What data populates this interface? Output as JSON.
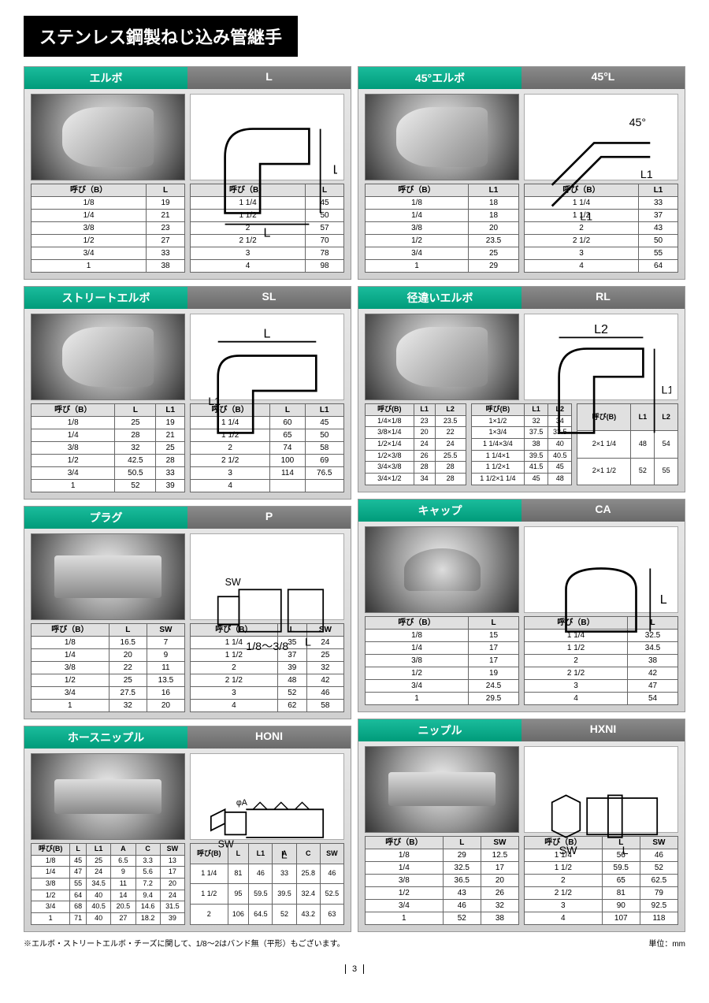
{
  "title": "ステンレス鋼製ねじ込み管継手",
  "footnote": "※エルボ・ストリートエルボ・チーズに関して、1/8〜2はバンド無（平形）もございます。",
  "unit": "単位：mm",
  "page": "3",
  "cards": {
    "L": {
      "name": "エルボ",
      "code": "L",
      "tA": {
        "h": [
          "呼び（B）",
          "L"
        ],
        "r": [
          [
            "1/8",
            "19"
          ],
          [
            "1/4",
            "21"
          ],
          [
            "3/8",
            "23"
          ],
          [
            "1/2",
            "27"
          ],
          [
            "3/4",
            "33"
          ],
          [
            "1",
            "38"
          ]
        ]
      },
      "tB": {
        "h": [
          "呼び（B）",
          "L"
        ],
        "r": [
          [
            "1 1/4",
            "45"
          ],
          [
            "1 1/2",
            "50"
          ],
          [
            "2",
            "57"
          ],
          [
            "2 1/2",
            "70"
          ],
          [
            "3",
            "78"
          ],
          [
            "4",
            "98"
          ]
        ]
      }
    },
    "45L": {
      "name": "45°エルボ",
      "code": "45°L",
      "tA": {
        "h": [
          "呼び（B）",
          "L1"
        ],
        "r": [
          [
            "1/8",
            "18"
          ],
          [
            "1/4",
            "18"
          ],
          [
            "3/8",
            "20"
          ],
          [
            "1/2",
            "23.5"
          ],
          [
            "3/4",
            "25"
          ],
          [
            "1",
            "29"
          ]
        ]
      },
      "tB": {
        "h": [
          "呼び（B）",
          "L1"
        ],
        "r": [
          [
            "1 1/4",
            "33"
          ],
          [
            "1 1/2",
            "37"
          ],
          [
            "2",
            "43"
          ],
          [
            "2 1/2",
            "50"
          ],
          [
            "3",
            "55"
          ],
          [
            "4",
            "64"
          ]
        ]
      }
    },
    "SL": {
      "name": "ストリートエルボ",
      "code": "SL",
      "tA": {
        "h": [
          "呼び（B）",
          "L",
          "L1"
        ],
        "r": [
          [
            "1/8",
            "25",
            "19"
          ],
          [
            "1/4",
            "28",
            "21"
          ],
          [
            "3/8",
            "32",
            "25"
          ],
          [
            "1/2",
            "42.5",
            "28"
          ],
          [
            "3/4",
            "50.5",
            "33"
          ],
          [
            "1",
            "52",
            "39"
          ]
        ]
      },
      "tB": {
        "h": [
          "呼び（B）",
          "L",
          "L1"
        ],
        "r": [
          [
            "1 1/4",
            "60",
            "45"
          ],
          [
            "1 1/2",
            "65",
            "50"
          ],
          [
            "2",
            "74",
            "58"
          ],
          [
            "2 1/2",
            "100",
            "69"
          ],
          [
            "3",
            "114",
            "76.5"
          ],
          [
            "4",
            "",
            ""
          ]
        ]
      }
    },
    "RL": {
      "name": "径違いエルボ",
      "code": "RL",
      "tA": {
        "h": [
          "呼び(B)",
          "L1",
          "L2"
        ],
        "r": [
          [
            "1/4×1/8",
            "23",
            "23.5"
          ],
          [
            "3/8×1/4",
            "20",
            "22"
          ],
          [
            "1/2×1/4",
            "24",
            "24"
          ],
          [
            "1/2×3/8",
            "26",
            "25.5"
          ],
          [
            "3/4×3/8",
            "28",
            "28"
          ],
          [
            "3/4×1/2",
            "34",
            "28"
          ]
        ]
      },
      "tB": {
        "h": [
          "呼び(B)",
          "L1",
          "L2"
        ],
        "r": [
          [
            "1×1/2",
            "32",
            "34"
          ],
          [
            "1×3/4",
            "37.5",
            "33.5"
          ],
          [
            "1 1/4×3/4",
            "38",
            "40"
          ],
          [
            "1 1/4×1",
            "39.5",
            "40.5"
          ],
          [
            "1 1/2×1",
            "41.5",
            "45"
          ],
          [
            "1 1/2×1 1/4",
            "45",
            "48"
          ]
        ]
      },
      "tC": {
        "h": [
          "呼び(B)",
          "L1",
          "L2"
        ],
        "r": [
          [
            "2×1 1/4",
            "48",
            "54"
          ],
          [
            "2×1 1/2",
            "52",
            "55"
          ]
        ]
      }
    },
    "P": {
      "name": "プラグ",
      "code": "P",
      "tA": {
        "h": [
          "呼び（B）",
          "L",
          "SW"
        ],
        "r": [
          [
            "1/8",
            "16.5",
            "7"
          ],
          [
            "1/4",
            "20",
            "9"
          ],
          [
            "3/8",
            "22",
            "11"
          ],
          [
            "1/2",
            "25",
            "13.5"
          ],
          [
            "3/4",
            "27.5",
            "16"
          ],
          [
            "1",
            "32",
            "20"
          ]
        ]
      },
      "tB": {
        "h": [
          "呼び（B）",
          "L",
          "SW"
        ],
        "r": [
          [
            "1 1/4",
            "35",
            "24"
          ],
          [
            "1 1/2",
            "37",
            "25"
          ],
          [
            "2",
            "39",
            "32"
          ],
          [
            "2 1/2",
            "48",
            "42"
          ],
          [
            "3",
            "52",
            "46"
          ],
          [
            "4",
            "62",
            "58"
          ]
        ]
      }
    },
    "CA": {
      "name": "キャップ",
      "code": "CA",
      "tA": {
        "h": [
          "呼び（B）",
          "L"
        ],
        "r": [
          [
            "1/8",
            "15"
          ],
          [
            "1/4",
            "17"
          ],
          [
            "3/8",
            "17"
          ],
          [
            "1/2",
            "19"
          ],
          [
            "3/4",
            "24.5"
          ],
          [
            "1",
            "29.5"
          ]
        ]
      },
      "tB": {
        "h": [
          "呼び（B）",
          "L"
        ],
        "r": [
          [
            "1 1/4",
            "32.5"
          ],
          [
            "1 1/2",
            "34.5"
          ],
          [
            "2",
            "38"
          ],
          [
            "2 1/2",
            "42"
          ],
          [
            "3",
            "47"
          ],
          [
            "4",
            "54"
          ]
        ]
      }
    },
    "HONI": {
      "name": "ホースニップル",
      "code": "HONI",
      "tA": {
        "h": [
          "呼び(B)",
          "L",
          "L1",
          "A",
          "C",
          "SW"
        ],
        "r": [
          [
            "1/8",
            "45",
            "25",
            "6.5",
            "3.3",
            "13"
          ],
          [
            "1/4",
            "47",
            "24",
            "9",
            "5.6",
            "17"
          ],
          [
            "3/8",
            "55",
            "34.5",
            "11",
            "7.2",
            "20"
          ],
          [
            "1/2",
            "64",
            "40",
            "14",
            "9.4",
            "24"
          ],
          [
            "3/4",
            "68",
            "40.5",
            "20.5",
            "14.6",
            "31.5"
          ],
          [
            "1",
            "71",
            "40",
            "27",
            "18.2",
            "39"
          ]
        ]
      },
      "tB": {
        "h": [
          "呼び(B)",
          "L",
          "L1",
          "A",
          "C",
          "SW"
        ],
        "r": [
          [
            "1 1/4",
            "81",
            "46",
            "33",
            "25.8",
            "46"
          ],
          [
            "1 1/2",
            "95",
            "59.5",
            "39.5",
            "32.4",
            "52.5"
          ],
          [
            "2",
            "106",
            "64.5",
            "52",
            "43.2",
            "63"
          ]
        ]
      }
    },
    "HXNI": {
      "name": "ニップル",
      "code": "HXNI",
      "tA": {
        "h": [
          "呼び（B）",
          "L",
          "SW"
        ],
        "r": [
          [
            "1/8",
            "29",
            "12.5"
          ],
          [
            "1/4",
            "32.5",
            "17"
          ],
          [
            "3/8",
            "36.5",
            "20"
          ],
          [
            "1/2",
            "43",
            "26"
          ],
          [
            "3/4",
            "46",
            "32"
          ],
          [
            "1",
            "52",
            "38"
          ]
        ]
      },
      "tB": {
        "h": [
          "呼び（B）",
          "L",
          "SW"
        ],
        "r": [
          [
            "1 1/4",
            "56",
            "46"
          ],
          [
            "1 1/2",
            "59.5",
            "52"
          ],
          [
            "2",
            "65",
            "62.5"
          ],
          [
            "2 1/2",
            "81",
            "79"
          ],
          [
            "3",
            "90",
            "92.5"
          ],
          [
            "4",
            "107",
            "118"
          ]
        ]
      }
    }
  }
}
